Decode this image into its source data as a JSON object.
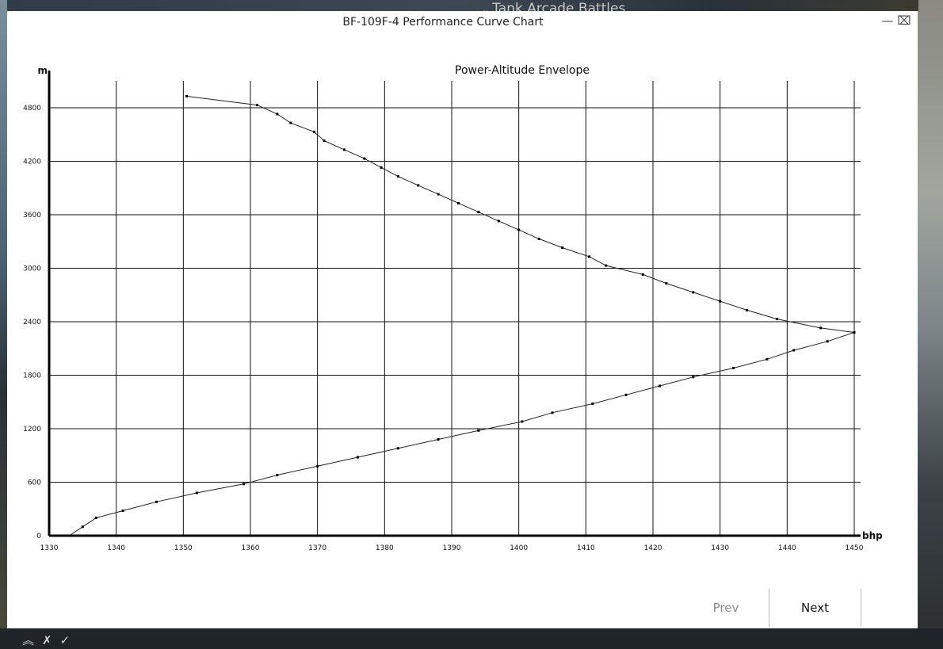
{
  "background": {
    "game_tab_label": "Tank Arcade Battles"
  },
  "window": {
    "title": "BF-109F-4 Performance Curve Chart",
    "minimize_icon": "minimize-icon",
    "close_icon": "close-icon"
  },
  "chart_data": {
    "type": "line",
    "title": "Power-Altitude Envelope",
    "xlabel": "bhp",
    "ylabel": "m",
    "xlim": [
      1330,
      1450
    ],
    "ylim": [
      0,
      5000
    ],
    "x_ticks": [
      1330,
      1340,
      1350,
      1360,
      1370,
      1380,
      1390,
      1400,
      1410,
      1420,
      1430,
      1440,
      1450
    ],
    "y_ticks": [
      0,
      600,
      1200,
      1800,
      2400,
      3000,
      3600,
      4200,
      4800
    ],
    "grid": true,
    "legend": "none",
    "series": [
      {
        "x": [
          1333,
          1335,
          1337,
          1341,
          1346,
          1352,
          1359,
          1364,
          1370,
          1376,
          1382,
          1388,
          1394,
          1400.5,
          1405,
          1411,
          1416,
          1421,
          1426,
          1432,
          1437,
          1441,
          1446,
          1450
        ],
        "y": [
          0,
          100,
          200,
          280,
          380,
          480,
          580,
          680,
          780,
          880,
          980,
          1080,
          1180,
          1280,
          1380,
          1480,
          1580,
          1680,
          1780,
          1880,
          1980,
          2080,
          2180,
          2280
        ]
      },
      {
        "x": [
          1350.5,
          1361,
          1364,
          1366,
          1369.5,
          1371,
          1374,
          1377,
          1379.5,
          1382,
          1385,
          1388,
          1391,
          1394,
          1397,
          1400,
          1403,
          1406.5,
          1410.5,
          1413,
          1418.5,
          1422,
          1426,
          1430,
          1434,
          1438.5,
          1445,
          1450
        ],
        "y": [
          4930,
          4830,
          4730,
          4630,
          4530,
          4430,
          4330,
          4230,
          4130,
          4030,
          3930,
          3830,
          3730,
          3630,
          3530,
          3430,
          3330,
          3230,
          3130,
          3030,
          2930,
          2830,
          2730,
          2630,
          2530,
          2430,
          2330,
          2280
        ]
      }
    ]
  },
  "buttons": {
    "prev_label": "Prev",
    "next_label": "Next"
  }
}
